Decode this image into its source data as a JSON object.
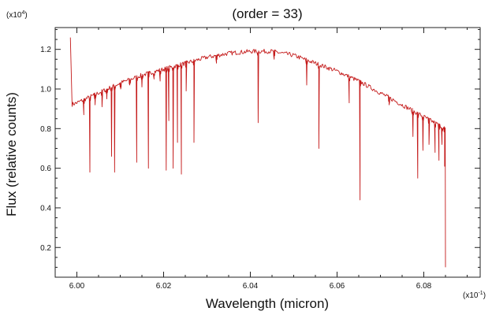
{
  "chart_data": {
    "type": "line",
    "title": "(order = 33)",
    "xlabel": "Wavelength (micron)",
    "ylabel": "Flux (relative counts)",
    "x_multiplier": "(x10",
    "x_multiplier_exp": "-1",
    "y_multiplier": "(x10",
    "y_multiplier_exp": "4",
    "xlim": [
      5.995,
      6.093
    ],
    "ylim": [
      0.05,
      1.31
    ],
    "xticks": [
      6.0,
      6.02,
      6.04,
      6.06,
      6.08
    ],
    "xtick_labels": [
      "6.00",
      "6.02",
      "6.04",
      "6.06",
      "6.08"
    ],
    "yticks": [
      0.2,
      0.4,
      0.6,
      0.8,
      1.0,
      1.2
    ],
    "ytick_labels": [
      "0.2",
      "0.4",
      "0.6",
      "0.8",
      "1.0",
      "1.2"
    ],
    "grid": false,
    "series": [
      {
        "color": "#c41a1a",
        "continuum": [
          [
            5.9985,
            0.92
          ],
          [
            6.0,
            0.93
          ],
          [
            6.005,
            0.98
          ],
          [
            6.01,
            1.03
          ],
          [
            6.015,
            1.07
          ],
          [
            6.02,
            1.1
          ],
          [
            6.025,
            1.13
          ],
          [
            6.03,
            1.16
          ],
          [
            6.035,
            1.18
          ],
          [
            6.04,
            1.19
          ],
          [
            6.045,
            1.19
          ],
          [
            6.05,
            1.17
          ],
          [
            6.055,
            1.13
          ],
          [
            6.06,
            1.09
          ],
          [
            6.065,
            1.04
          ],
          [
            6.07,
            0.98
          ],
          [
            6.075,
            0.92
          ],
          [
            6.08,
            0.86
          ],
          [
            6.085,
            0.8
          ]
        ],
        "absorption_lines": [
          [
            6.0016,
            0.87
          ],
          [
            6.003,
            0.58
          ],
          [
            6.0042,
            0.92
          ],
          [
            6.0058,
            0.91
          ],
          [
            6.0069,
            0.95
          ],
          [
            6.008,
            0.66
          ],
          [
            6.0087,
            0.58
          ],
          [
            6.0101,
            1.0
          ],
          [
            6.0122,
            1.02
          ],
          [
            6.0138,
            0.63
          ],
          [
            6.015,
            1.01
          ],
          [
            6.0165,
            0.6
          ],
          [
            6.0178,
            1.05
          ],
          [
            6.0192,
            1.04
          ],
          [
            6.0206,
            0.59
          ],
          [
            6.0212,
            0.84
          ],
          [
            6.0222,
            0.6
          ],
          [
            6.0232,
            0.73
          ],
          [
            6.0241,
            0.57
          ],
          [
            6.0252,
            0.99
          ],
          [
            6.027,
            0.73
          ],
          [
            6.0322,
            1.13
          ],
          [
            6.0418,
            0.83
          ],
          [
            6.0455,
            1.15
          ],
          [
            6.053,
            1.02
          ],
          [
            6.0558,
            0.7
          ],
          [
            6.0628,
            0.93
          ],
          [
            6.0653,
            0.44
          ],
          [
            6.072,
            0.92
          ],
          [
            6.0775,
            0.76
          ],
          [
            6.0786,
            0.55
          ],
          [
            6.0798,
            0.69
          ],
          [
            6.0812,
            0.72
          ],
          [
            6.0826,
            0.68
          ],
          [
            6.0835,
            0.64
          ],
          [
            6.0842,
            0.72
          ],
          [
            6.0848,
            0.61
          ]
        ],
        "start_spike": [
          5.9985,
          1.26
        ],
        "end_drop": [
          6.085,
          0.1
        ]
      }
    ]
  }
}
